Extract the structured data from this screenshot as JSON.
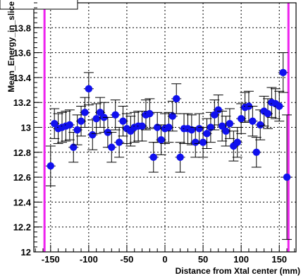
{
  "chart_data": {
    "type": "scatter",
    "title": "",
    "xlabel": "Distance from Xtal center (mm)",
    "ylabel": "Mean_Energy_in_slice",
    "xlim": [
      -172,
      172
    ],
    "ylim": [
      12.0,
      14.0
    ],
    "x_ticks": [
      -150,
      -100,
      -50,
      0,
      50,
      100,
      150
    ],
    "x_tick_labels": [
      "-150",
      "-100",
      "-50",
      "0",
      "50",
      "100",
      "150"
    ],
    "y_ticks": [
      12.0,
      12.2,
      12.4,
      12.6,
      12.8,
      13.0,
      13.2,
      13.4,
      13.6,
      13.8
    ],
    "y_tick_labels": [
      "12",
      "12.2",
      "12.4",
      "12.6",
      "12.8",
      "13",
      "13.2",
      "13.4",
      "13.6",
      "13.8"
    ],
    "grid": true,
    "grid_style": "dotted",
    "marker_color": "#1010ee",
    "vertical_lines": {
      "x": [
        -158,
        162
      ],
      "color": "#ee22ee"
    },
    "points": [
      {
        "x": -150,
        "y": 12.69,
        "err": 0.16
      },
      {
        "x": -145,
        "y": 13.03,
        "err": 0.12
      },
      {
        "x": -140,
        "y": 12.99,
        "err": 0.12
      },
      {
        "x": -135,
        "y": 13.0,
        "err": 0.12
      },
      {
        "x": -130,
        "y": 13.01,
        "err": 0.12
      },
      {
        "x": -125,
        "y": 13.02,
        "err": 0.12
      },
      {
        "x": -120,
        "y": 12.84,
        "err": 0.12
      },
      {
        "x": -115,
        "y": 12.98,
        "err": 0.12
      },
      {
        "x": -110,
        "y": 13.05,
        "err": 0.12
      },
      {
        "x": -105,
        "y": 13.12,
        "err": 0.12
      },
      {
        "x": -100,
        "y": 13.31,
        "err": 0.13
      },
      {
        "x": -95,
        "y": 12.94,
        "err": 0.12
      },
      {
        "x": -90,
        "y": 13.07,
        "err": 0.12
      },
      {
        "x": -85,
        "y": 13.12,
        "err": 0.12
      },
      {
        "x": -80,
        "y": 13.08,
        "err": 0.12
      },
      {
        "x": -75,
        "y": 12.96,
        "err": 0.12
      },
      {
        "x": -70,
        "y": 12.84,
        "err": 0.12
      },
      {
        "x": -65,
        "y": 13.1,
        "err": 0.12
      },
      {
        "x": -60,
        "y": 12.88,
        "err": 0.12
      },
      {
        "x": -55,
        "y": 13.05,
        "err": 0.12
      },
      {
        "x": -50,
        "y": 12.99,
        "err": 0.12
      },
      {
        "x": -45,
        "y": 12.97,
        "err": 0.12
      },
      {
        "x": -40,
        "y": 13.0,
        "err": 0.12
      },
      {
        "x": -35,
        "y": 13.01,
        "err": 0.12
      },
      {
        "x": -30,
        "y": 13.01,
        "err": 0.12
      },
      {
        "x": -25,
        "y": 13.1,
        "err": 0.12
      },
      {
        "x": -20,
        "y": 13.11,
        "err": 0.12
      },
      {
        "x": -15,
        "y": 12.76,
        "err": 0.12
      },
      {
        "x": -10,
        "y": 13.0,
        "err": 0.12
      },
      {
        "x": -5,
        "y": 12.9,
        "err": 0.12
      },
      {
        "x": 0,
        "y": 12.99,
        "err": 0.12
      },
      {
        "x": 5,
        "y": 13.0,
        "err": 0.12
      },
      {
        "x": 10,
        "y": 13.09,
        "err": 0.12
      },
      {
        "x": 15,
        "y": 13.23,
        "err": 0.12
      },
      {
        "x": 20,
        "y": 12.76,
        "err": 0.12
      },
      {
        "x": 25,
        "y": 12.99,
        "err": 0.12
      },
      {
        "x": 30,
        "y": 12.99,
        "err": 0.12
      },
      {
        "x": 35,
        "y": 12.98,
        "err": 0.12
      },
      {
        "x": 40,
        "y": 12.88,
        "err": 0.12
      },
      {
        "x": 45,
        "y": 12.99,
        "err": 0.12
      },
      {
        "x": 50,
        "y": 12.88,
        "err": 0.12
      },
      {
        "x": 55,
        "y": 12.95,
        "err": 0.12
      },
      {
        "x": 60,
        "y": 13.0,
        "err": 0.12
      },
      {
        "x": 65,
        "y": 13.1,
        "err": 0.12
      },
      {
        "x": 70,
        "y": 13.14,
        "err": 0.12
      },
      {
        "x": 75,
        "y": 13.01,
        "err": 0.12
      },
      {
        "x": 80,
        "y": 12.97,
        "err": 0.12
      },
      {
        "x": 85,
        "y": 13.03,
        "err": 0.12
      },
      {
        "x": 90,
        "y": 12.85,
        "err": 0.12
      },
      {
        "x": 95,
        "y": 12.88,
        "err": 0.12
      },
      {
        "x": 100,
        "y": 13.07,
        "err": 0.12
      },
      {
        "x": 105,
        "y": 13.16,
        "err": 0.12
      },
      {
        "x": 110,
        "y": 13.17,
        "err": 0.12
      },
      {
        "x": 115,
        "y": 13.05,
        "err": 0.12
      },
      {
        "x": 120,
        "y": 12.8,
        "err": 0.12
      },
      {
        "x": 125,
        "y": 13.02,
        "err": 0.12
      },
      {
        "x": 130,
        "y": 13.13,
        "err": 0.12
      },
      {
        "x": 135,
        "y": 13.11,
        "err": 0.12
      },
      {
        "x": 140,
        "y": 13.2,
        "err": 0.12
      },
      {
        "x": 145,
        "y": 13.19,
        "err": 0.12
      },
      {
        "x": 150,
        "y": 13.17,
        "err": 0.12
      },
      {
        "x": 155,
        "y": 13.44,
        "err": 0.16
      },
      {
        "x": 160,
        "y": 12.6,
        "err": 0.5
      }
    ]
  }
}
